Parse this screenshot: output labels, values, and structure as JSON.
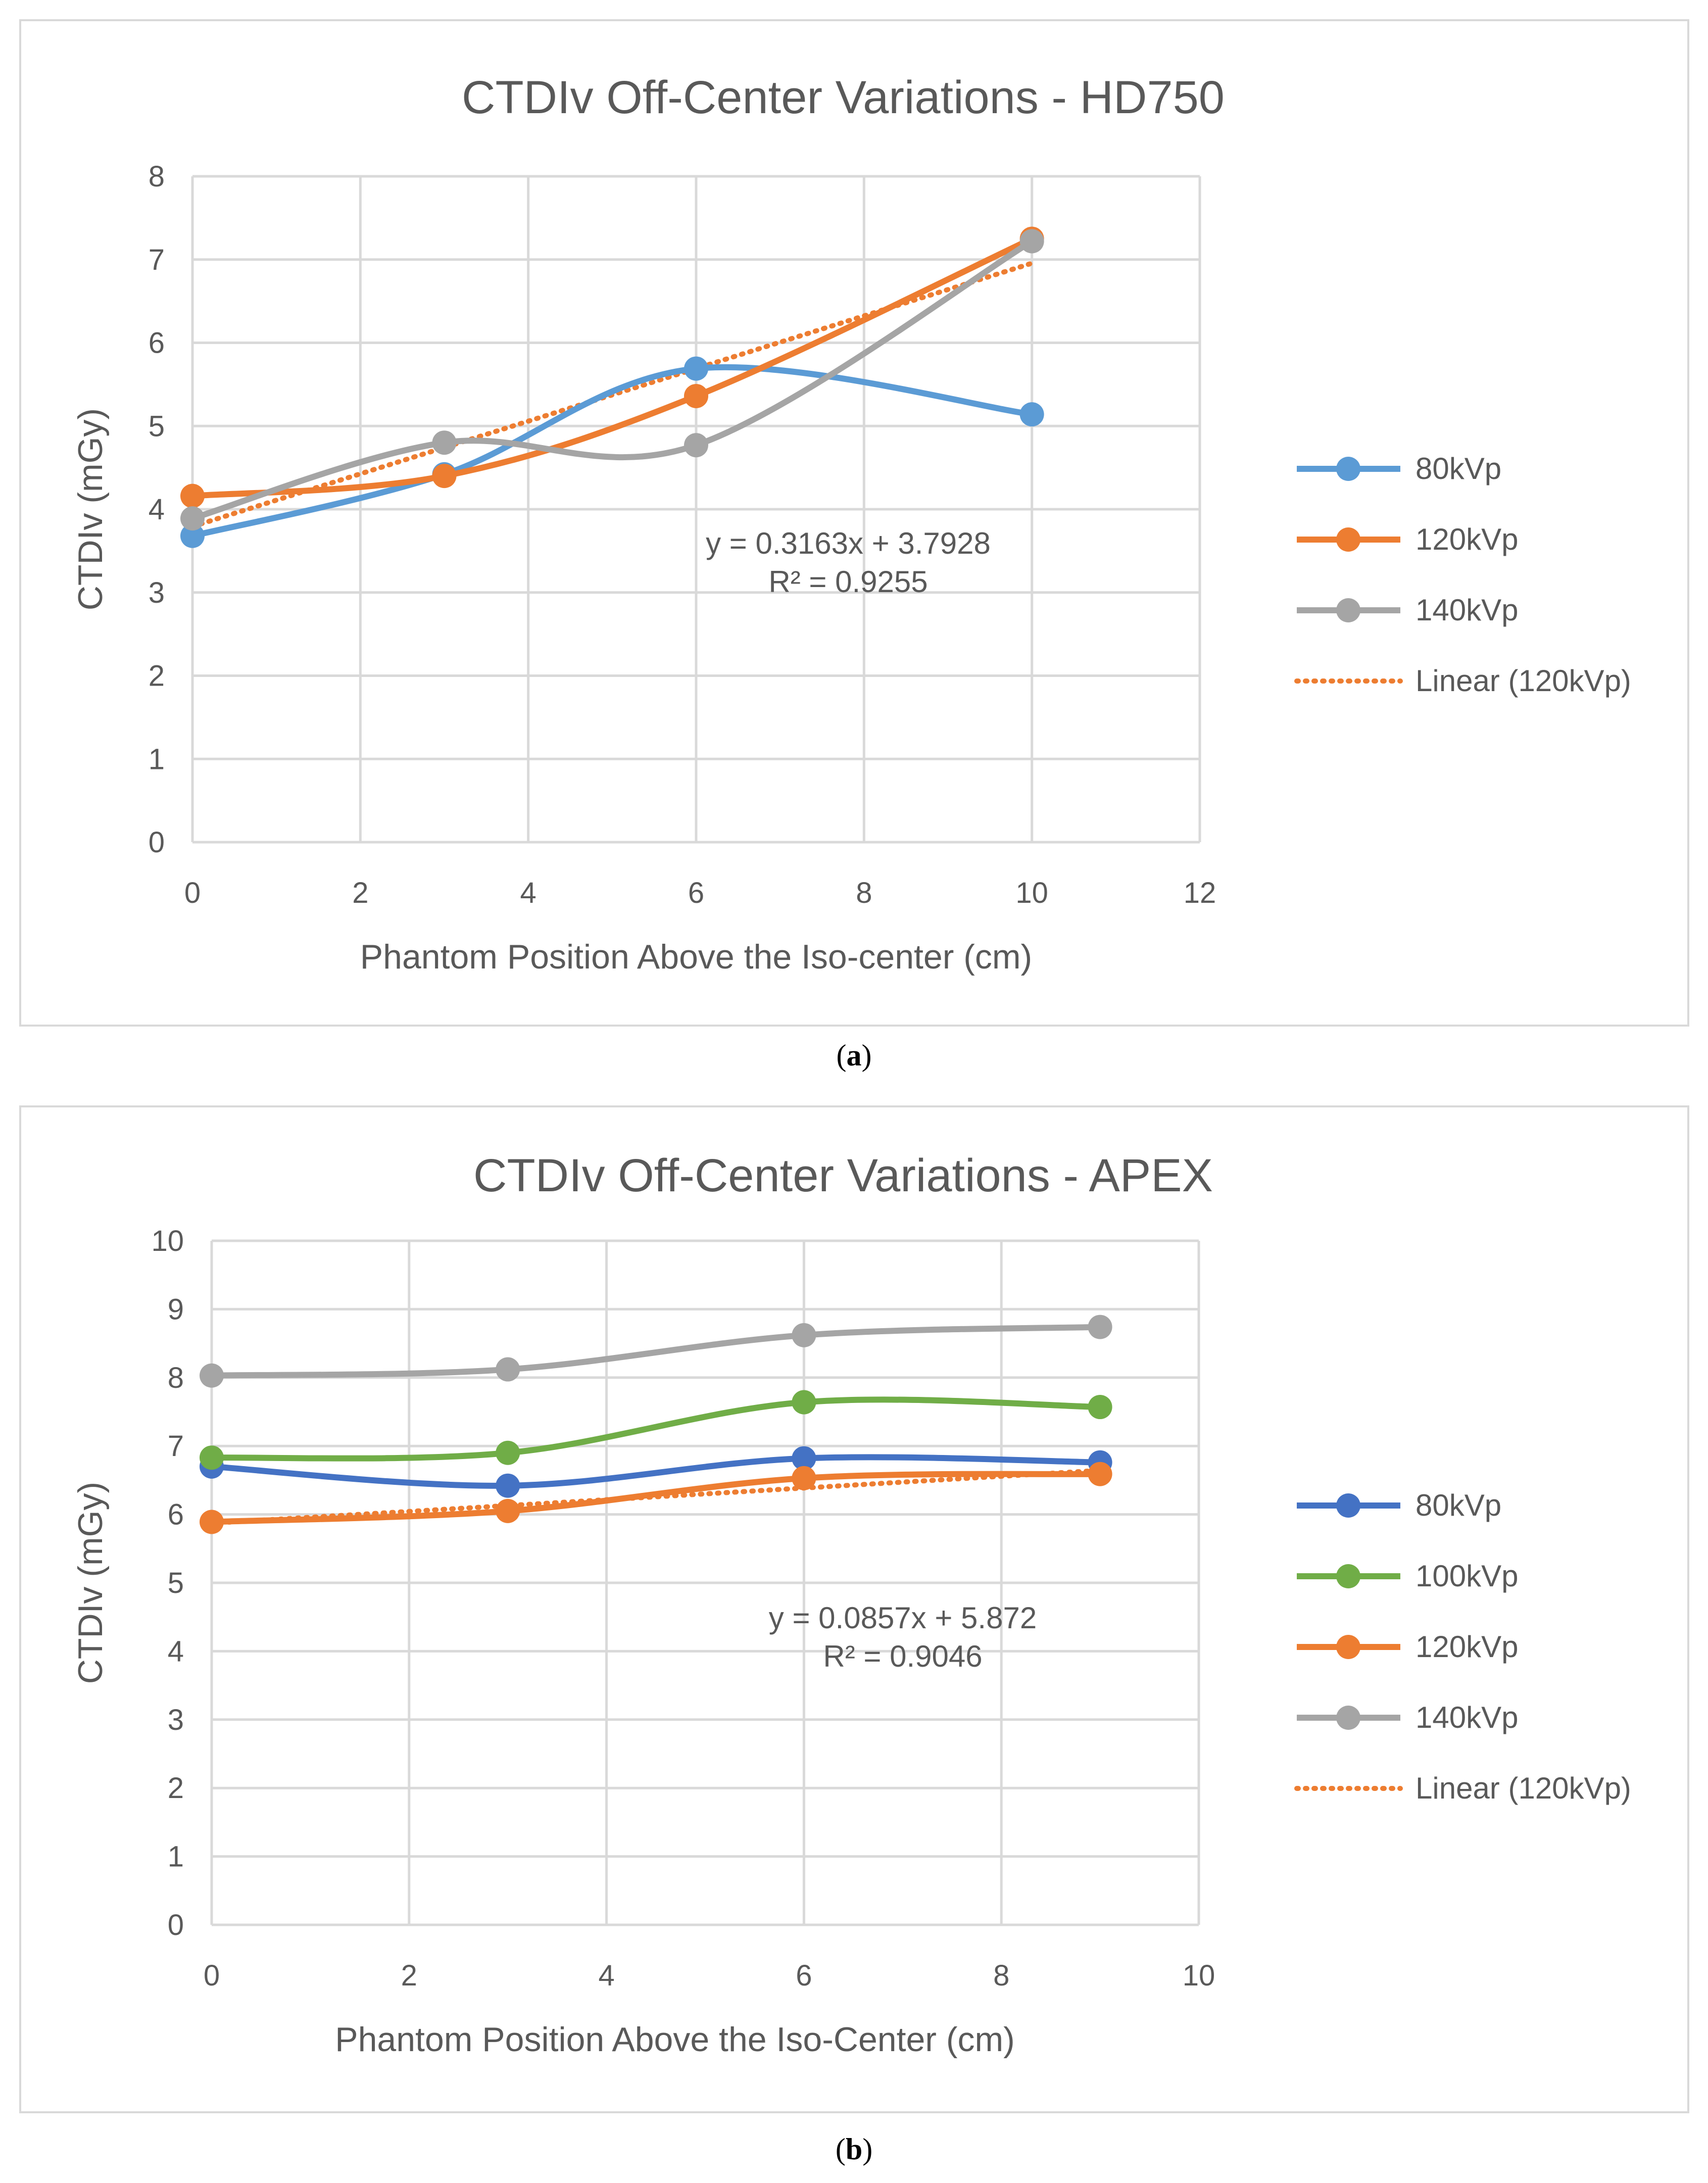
{
  "chart_data": [
    {
      "type": "line",
      "title": "CTDIv Off-Center Variations - HD750",
      "xlabel": "Phantom Position Above the Iso-center (cm)",
      "ylabel": "CTDIv (mGy)",
      "xlim": [
        0,
        12
      ],
      "ylim": [
        0,
        8
      ],
      "x_ticks": [
        "0",
        "2",
        "4",
        "6",
        "8",
        "10",
        "12"
      ],
      "y_ticks": [
        "0",
        "1",
        "2",
        "3",
        "4",
        "5",
        "6",
        "7",
        "8"
      ],
      "grid": true,
      "legend_position": "right",
      "series": [
        {
          "name": "80kVp",
          "color": "#5b9bd5",
          "x": [
            0,
            3,
            6,
            10
          ],
          "y": [
            3.68,
            4.42,
            5.69,
            5.14
          ]
        },
        {
          "name": "120kVp",
          "color": "#ed7d31",
          "x": [
            0,
            3,
            6,
            10
          ],
          "y": [
            4.16,
            4.4,
            5.36,
            7.25
          ]
        },
        {
          "name": "140kVp",
          "color": "#a5a5a5",
          "x": [
            0,
            3,
            6,
            10
          ],
          "y": [
            3.89,
            4.8,
            4.77,
            7.22
          ]
        }
      ],
      "trendline": {
        "name": "Linear (120kVp)",
        "color": "#ed7d31",
        "slope": 0.3163,
        "intercept": 3.7928,
        "x_range": [
          0,
          10
        ]
      },
      "annotation": {
        "equation": "y = 0.3163x + 3.7928",
        "r2": "R² = 0.9255"
      }
    },
    {
      "type": "line",
      "title": "CTDIv Off-Center Variations - APEX",
      "xlabel": "Phantom Position Above the Iso-Center (cm)",
      "ylabel": "CTDIv (mGy)",
      "xlim": [
        0,
        10
      ],
      "ylim": [
        0,
        10
      ],
      "x_ticks": [
        "0",
        "2",
        "4",
        "6",
        "8",
        "10"
      ],
      "y_ticks": [
        "0",
        "1",
        "2",
        "3",
        "4",
        "5",
        "6",
        "7",
        "8",
        "9",
        "10"
      ],
      "grid": true,
      "legend_position": "right",
      "series": [
        {
          "name": "80kVp",
          "color": "#4472c4",
          "x": [
            0,
            3,
            6,
            9
          ],
          "y": [
            6.7,
            6.42,
            6.82,
            6.76
          ]
        },
        {
          "name": "100kVp",
          "color": "#70ad47",
          "x": [
            0,
            3,
            6,
            9
          ],
          "y": [
            6.83,
            6.9,
            7.64,
            7.57
          ]
        },
        {
          "name": "120kVp",
          "color": "#ed7d31",
          "x": [
            0,
            3,
            6,
            9
          ],
          "y": [
            5.89,
            6.05,
            6.53,
            6.59
          ]
        },
        {
          "name": "140kVp",
          "color": "#a5a5a5",
          "x": [
            0,
            3,
            6,
            9
          ],
          "y": [
            8.03,
            8.12,
            8.62,
            8.74
          ]
        }
      ],
      "trendline": {
        "name": "Linear (120kVp)",
        "color": "#ed7d31",
        "slope": 0.0857,
        "intercept": 5.872,
        "x_range": [
          0,
          9
        ]
      },
      "annotation": {
        "equation": "y = 0.0857x + 5.872",
        "r2": "R² = 0.9046"
      }
    }
  ],
  "captions": [
    {
      "prefix": "(",
      "letter": "a",
      "suffix": ")"
    },
    {
      "prefix": "(",
      "letter": "b",
      "suffix": ")"
    }
  ]
}
